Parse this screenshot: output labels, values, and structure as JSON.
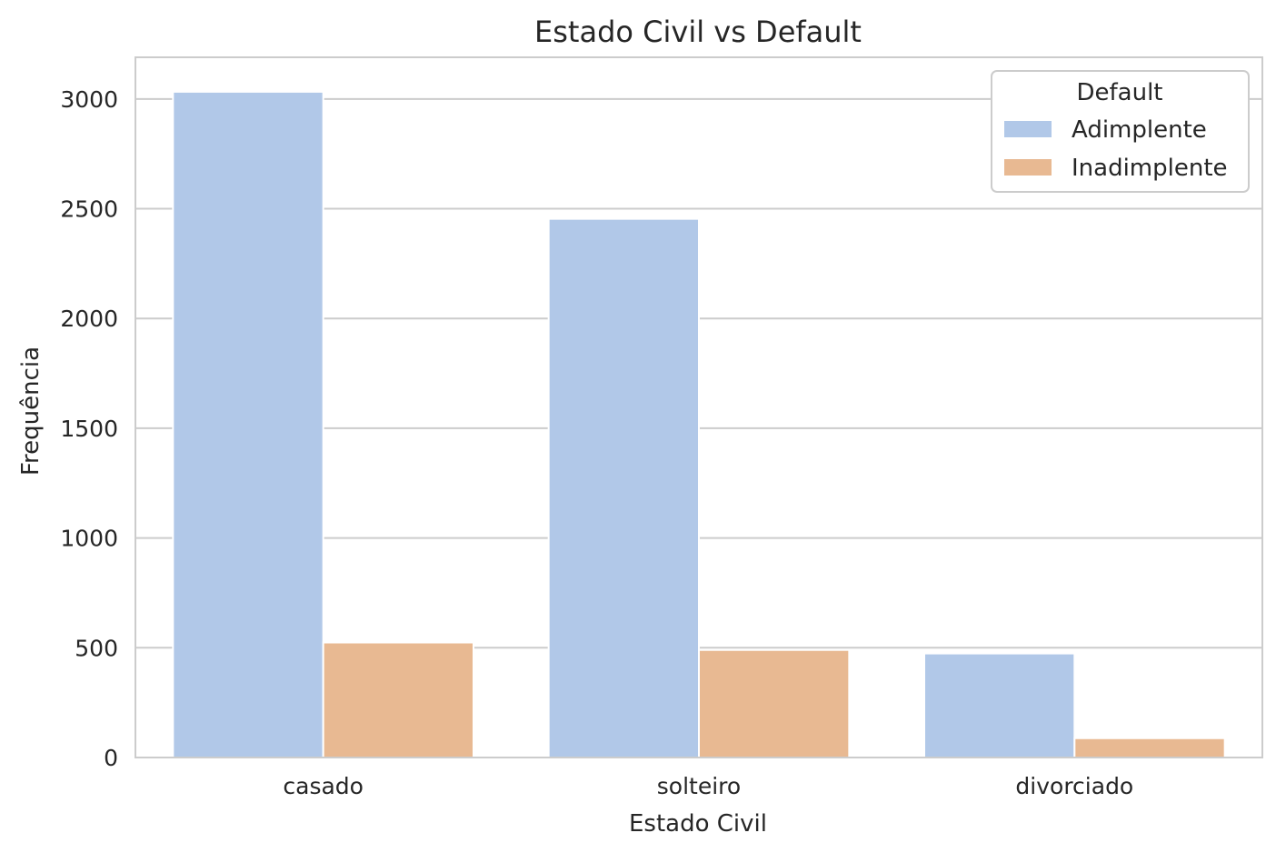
{
  "chart_data": {
    "type": "bar",
    "title": "Estado Civil vs Default",
    "xlabel": "Estado Civil",
    "ylabel": "Frequência",
    "categories": [
      "casado",
      "solteiro",
      "divorciado"
    ],
    "series": [
      {
        "name": "Adimplente",
        "color": "#b1c8e8",
        "values": [
          3033,
          2454,
          474
        ]
      },
      {
        "name": "Inadimplente",
        "color": "#e8b992",
        "values": [
          524,
          490,
          88
        ]
      }
    ],
    "ylim": [
      0,
      3190
    ],
    "yticks": [
      0,
      500,
      1000,
      1500,
      2000,
      2500,
      3000
    ],
    "grid": true,
    "legend": {
      "title": "Default",
      "placement": "top-right"
    }
  }
}
